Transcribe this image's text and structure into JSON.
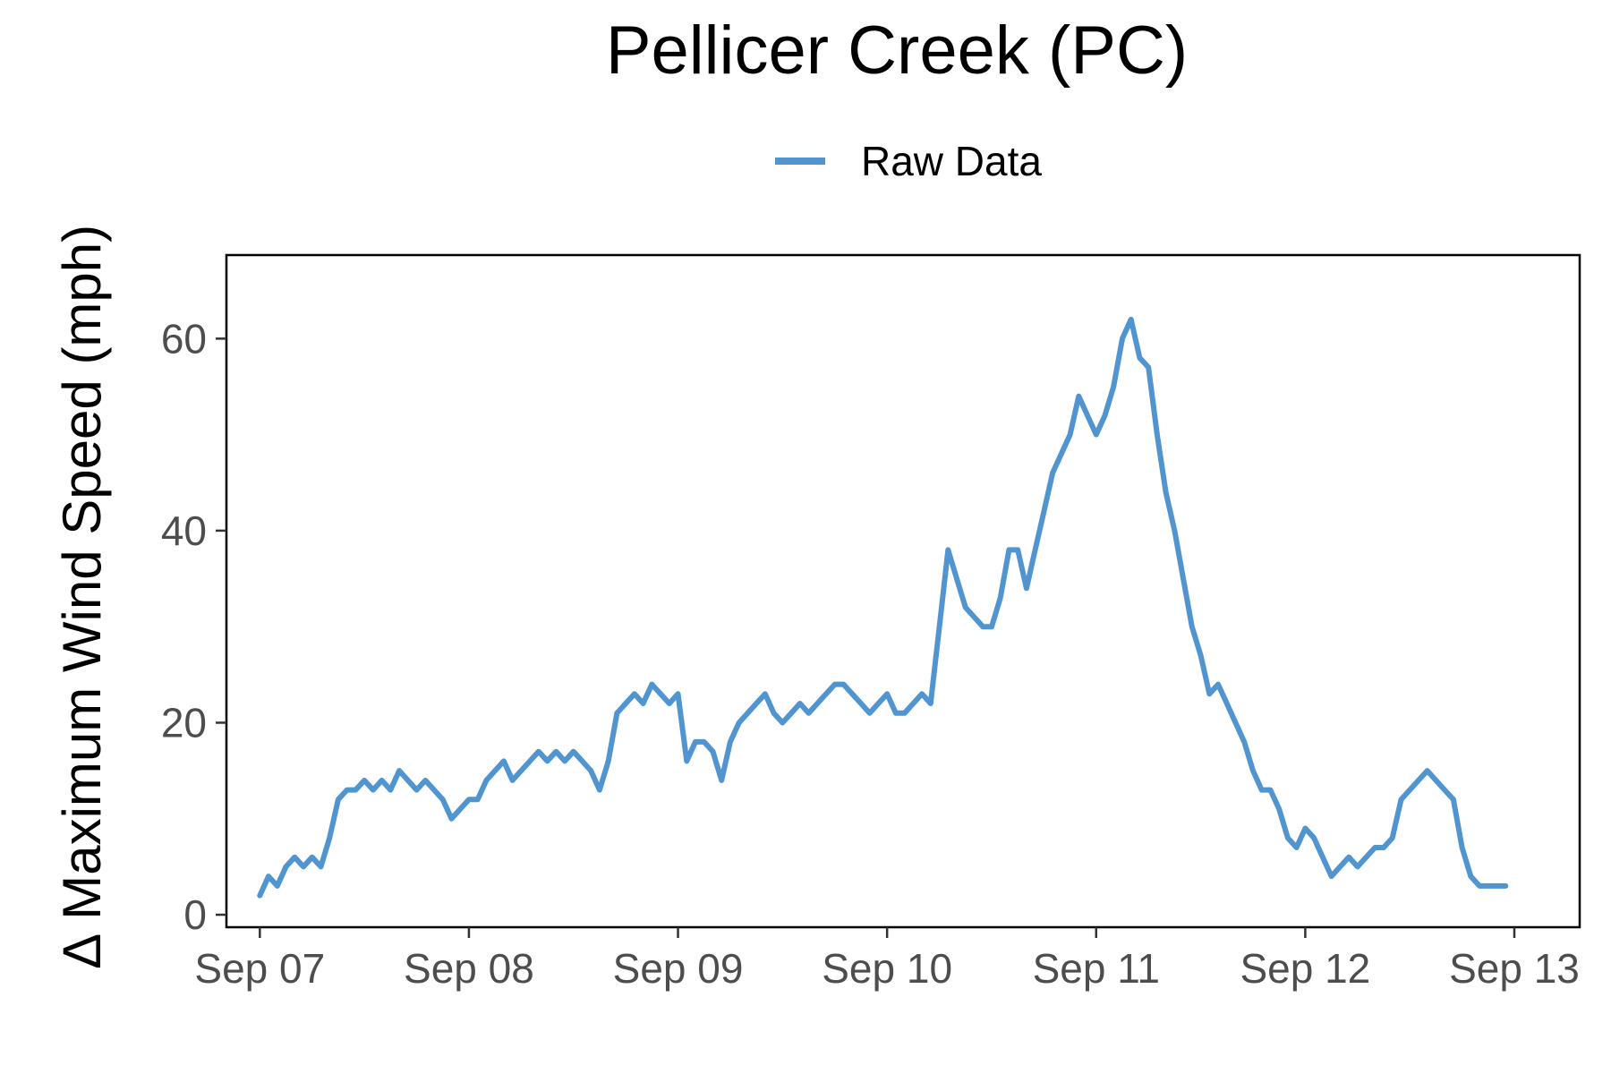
{
  "chart_data": {
    "type": "line",
    "title": "Pellicer Creek (PC)",
    "ylabel": "∆ Maximum Wind Speed (mph)",
    "xlabel": "",
    "x_tick_labels": [
      "Sep 07",
      "Sep 08",
      "Sep 09",
      "Sep 10",
      "Sep 11",
      "Sep 12",
      "Sep 13"
    ],
    "x_tick_dates": [
      "2017-09-07",
      "2017-09-08",
      "2017-09-09",
      "2017-09-10",
      "2017-09-11",
      "2017-09-12",
      "2017-09-13"
    ],
    "y_ticks": [
      0,
      20,
      40,
      60
    ],
    "y_tick_labels": [
      "0",
      "20",
      "40",
      "60"
    ],
    "xlim": [
      "2017-09-06 20:10",
      "2017-09-13 07:30"
    ],
    "ylim": [
      -1.3,
      68.7
    ],
    "grid": false,
    "legend_position": "top",
    "series": [
      {
        "name": "Raw Data",
        "color": "#5094d0",
        "x": [
          "2017-09-07 00:00",
          "2017-09-07 01:00",
          "2017-09-07 02:00",
          "2017-09-07 03:00",
          "2017-09-07 04:00",
          "2017-09-07 05:00",
          "2017-09-07 06:00",
          "2017-09-07 07:00",
          "2017-09-07 08:00",
          "2017-09-07 09:00",
          "2017-09-07 10:00",
          "2017-09-07 11:00",
          "2017-09-07 12:00",
          "2017-09-07 13:00",
          "2017-09-07 14:00",
          "2017-09-07 15:00",
          "2017-09-07 16:00",
          "2017-09-07 17:00",
          "2017-09-07 18:00",
          "2017-09-07 19:00",
          "2017-09-07 20:00",
          "2017-09-07 21:00",
          "2017-09-07 22:00",
          "2017-09-07 23:00",
          "2017-09-08 00:00",
          "2017-09-08 01:00",
          "2017-09-08 02:00",
          "2017-09-08 03:00",
          "2017-09-08 04:00",
          "2017-09-08 05:00",
          "2017-09-08 06:00",
          "2017-09-08 07:00",
          "2017-09-08 08:00",
          "2017-09-08 09:00",
          "2017-09-08 10:00",
          "2017-09-08 11:00",
          "2017-09-08 12:00",
          "2017-09-08 13:00",
          "2017-09-08 14:00",
          "2017-09-08 15:00",
          "2017-09-08 16:00",
          "2017-09-08 17:00",
          "2017-09-08 18:00",
          "2017-09-08 19:00",
          "2017-09-08 20:00",
          "2017-09-08 21:00",
          "2017-09-08 22:00",
          "2017-09-08 23:00",
          "2017-09-09 00:00",
          "2017-09-09 01:00",
          "2017-09-09 02:00",
          "2017-09-09 03:00",
          "2017-09-09 04:00",
          "2017-09-09 05:00",
          "2017-09-09 06:00",
          "2017-09-09 07:00",
          "2017-09-09 08:00",
          "2017-09-09 09:00",
          "2017-09-09 10:00",
          "2017-09-09 11:00",
          "2017-09-09 12:00",
          "2017-09-09 13:00",
          "2017-09-09 14:00",
          "2017-09-09 15:00",
          "2017-09-09 16:00",
          "2017-09-09 17:00",
          "2017-09-09 18:00",
          "2017-09-09 19:00",
          "2017-09-09 20:00",
          "2017-09-09 21:00",
          "2017-09-09 22:00",
          "2017-09-09 23:00",
          "2017-09-10 00:00",
          "2017-09-10 01:00",
          "2017-09-10 02:00",
          "2017-09-10 03:00",
          "2017-09-10 04:00",
          "2017-09-10 05:00",
          "2017-09-10 06:00",
          "2017-09-10 07:00",
          "2017-09-10 08:00",
          "2017-09-10 09:00",
          "2017-09-10 10:00",
          "2017-09-10 11:00",
          "2017-09-10 12:00",
          "2017-09-10 13:00",
          "2017-09-10 14:00",
          "2017-09-10 15:00",
          "2017-09-10 16:00",
          "2017-09-10 17:00",
          "2017-09-10 18:00",
          "2017-09-10 19:00",
          "2017-09-10 20:00",
          "2017-09-10 21:00",
          "2017-09-10 22:00",
          "2017-09-10 23:00",
          "2017-09-11 00:00",
          "2017-09-11 01:00",
          "2017-09-11 02:00",
          "2017-09-11 03:00",
          "2017-09-11 04:00",
          "2017-09-11 05:00",
          "2017-09-11 06:00",
          "2017-09-11 07:00",
          "2017-09-11 08:00",
          "2017-09-11 09:00",
          "2017-09-11 10:00",
          "2017-09-11 11:00",
          "2017-09-11 12:00",
          "2017-09-11 13:00",
          "2017-09-11 14:00",
          "2017-09-11 15:00",
          "2017-09-11 16:00",
          "2017-09-11 17:00",
          "2017-09-11 18:00",
          "2017-09-11 19:00",
          "2017-09-11 20:00",
          "2017-09-11 21:00",
          "2017-09-11 22:00",
          "2017-09-11 23:00",
          "2017-09-12 00:00",
          "2017-09-12 01:00",
          "2017-09-12 02:00",
          "2017-09-12 03:00",
          "2017-09-12 04:00",
          "2017-09-12 05:00",
          "2017-09-12 06:00",
          "2017-09-12 07:00",
          "2017-09-12 08:00",
          "2017-09-12 09:00",
          "2017-09-12 10:00",
          "2017-09-12 11:00",
          "2017-09-12 12:00",
          "2017-09-12 13:00",
          "2017-09-12 14:00",
          "2017-09-12 15:00",
          "2017-09-12 16:00",
          "2017-09-12 17:00",
          "2017-09-12 18:00",
          "2017-09-12 19:00",
          "2017-09-12 20:00",
          "2017-09-12 21:00",
          "2017-09-12 22:00",
          "2017-09-12 23:00"
        ],
        "y": [
          2,
          4,
          3,
          5,
          6,
          5,
          6,
          5,
          8,
          12,
          13,
          13,
          14,
          13,
          14,
          13,
          15,
          14,
          13,
          14,
          13,
          12,
          10,
          11,
          12,
          12,
          14,
          15,
          16,
          14,
          15,
          16,
          17,
          16,
          17,
          16,
          17,
          16,
          15,
          13,
          16,
          21,
          22,
          23,
          22,
          24,
          23,
          22,
          23,
          16,
          18,
          18,
          17,
          14,
          18,
          20,
          21,
          22,
          23,
          21,
          20,
          21,
          22,
          21,
          22,
          23,
          24,
          24,
          23,
          22,
          21,
          22,
          23,
          21,
          21,
          22,
          23,
          22,
          30,
          38,
          35,
          32,
          31,
          30,
          30,
          33,
          38,
          38,
          34,
          38,
          42,
          46,
          48,
          50,
          54,
          52,
          50,
          52,
          55,
          60,
          62,
          58,
          57,
          50,
          44,
          40,
          35,
          30,
          27,
          23,
          24,
          22,
          20,
          18,
          15,
          13,
          13,
          11,
          8,
          7,
          9,
          8,
          6,
          4,
          5,
          6,
          5,
          6,
          7,
          7,
          8,
          12,
          13,
          14,
          15,
          14,
          13,
          12,
          7,
          4,
          3,
          3,
          3,
          3
        ]
      }
    ]
  }
}
